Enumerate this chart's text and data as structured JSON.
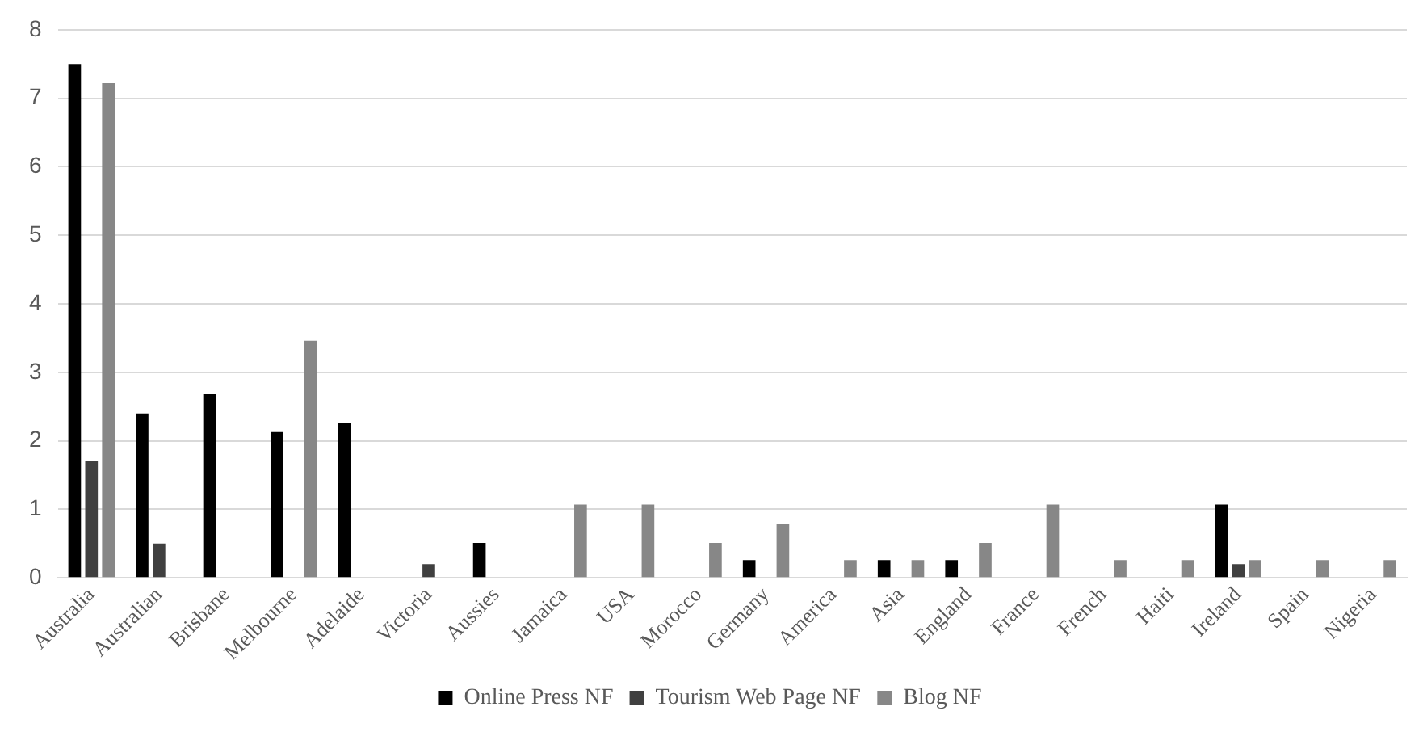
{
  "chart_data": {
    "type": "bar",
    "categories": [
      "Australia",
      "Australian",
      "Brisbane",
      "Melbourne",
      "Adelaide",
      "Victoria",
      "Aussies",
      "Jamaica",
      "USA",
      "Morocco",
      "Germany",
      "America",
      "Asia",
      "England",
      "France",
      "French",
      "Haiti",
      "Ireland",
      "Spain",
      "Nigeria"
    ],
    "series": [
      {
        "name": "Online Press NF",
        "color": "#000000",
        "values": [
          7.5,
          2.4,
          2.68,
          2.13,
          2.26,
          0,
          0.51,
          0,
          0,
          0,
          0.26,
          0,
          0.26,
          0.26,
          0,
          0,
          0,
          1.07,
          0,
          0
        ]
      },
      {
        "name": "Tourism Web Page NF",
        "color": "#404040",
        "values": [
          1.7,
          0.5,
          0,
          0,
          0,
          0.2,
          0,
          0,
          0,
          0,
          0,
          0,
          0,
          0,
          0,
          0,
          0,
          0.2,
          0,
          0
        ]
      },
      {
        "name": "Blog NF",
        "color": "#878787",
        "values": [
          7.22,
          0,
          0,
          3.46,
          0,
          0,
          0,
          1.07,
          1.07,
          0.51,
          0.79,
          0.26,
          0.26,
          0.51,
          1.07,
          0.26,
          0.26,
          0.26,
          0.26,
          0.26
        ]
      }
    ],
    "ylim": [
      0,
      8
    ],
    "yticks": [
      0,
      1,
      2,
      3,
      4,
      5,
      6,
      7,
      8
    ],
    "grid": "y",
    "legend": "bottom"
  }
}
